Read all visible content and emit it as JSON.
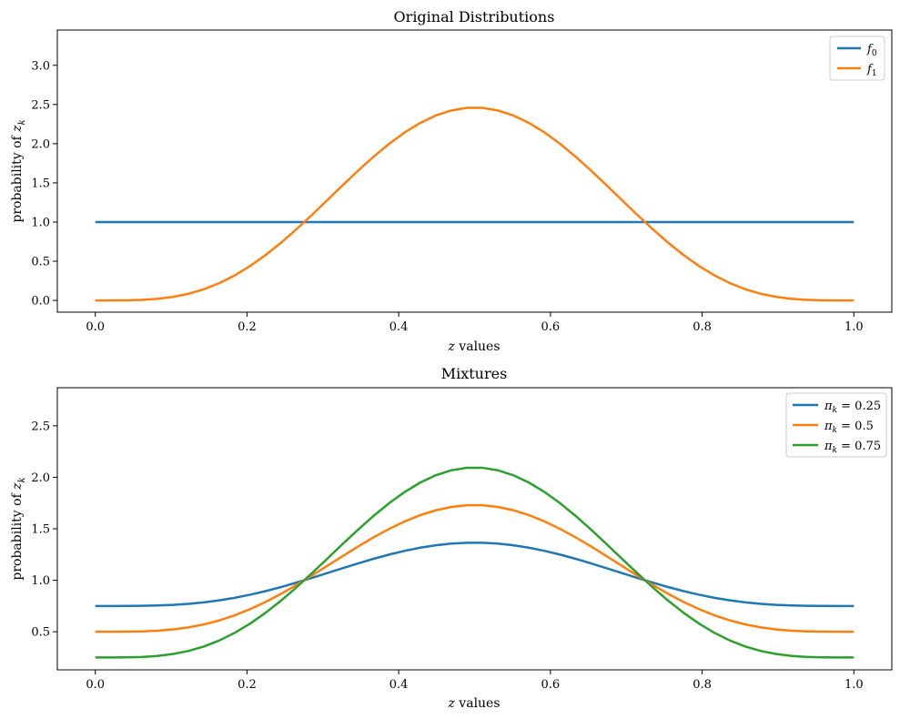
{
  "chart_data": [
    {
      "type": "line",
      "title": "Original Distributions",
      "xlabel": "z values",
      "ylabel": "probability of z_k",
      "xlim": [
        -0.05,
        1.05
      ],
      "ylim": [
        -0.15,
        3.45
      ],
      "xticks": [
        0.0,
        0.2,
        0.4,
        0.6,
        0.8,
        1.0
      ],
      "xtick_labels": [
        "0.0",
        "0.2",
        "0.4",
        "0.6",
        "0.8",
        "1.0"
      ],
      "yticks": [
        0.0,
        0.5,
        1.0,
        1.5,
        2.0,
        2.5,
        3.0
      ],
      "ytick_labels": [
        "0.0",
        "0.5",
        "1.0",
        "1.5",
        "2.0",
        "2.5",
        "3.0"
      ],
      "grid": false,
      "legend_position": "top-right",
      "series": [
        {
          "name": "f0",
          "label_main": "f",
          "label_sub": "0",
          "color": "#1f77b4",
          "kind": "flat",
          "value": 1.0
        },
        {
          "name": "f1",
          "label_main": "f",
          "label_sub": "1",
          "color": "#ff7f0e",
          "kind": "beta",
          "a": 5,
          "b": 5,
          "scale": 1.0,
          "offset": 0.0
        }
      ]
    },
    {
      "type": "line",
      "title": "Mixtures",
      "xlabel": "z values",
      "ylabel": "probability of z_k",
      "xlim": [
        -0.05,
        1.05
      ],
      "ylim": [
        0.13,
        2.87
      ],
      "xticks": [
        0.0,
        0.2,
        0.4,
        0.6,
        0.8,
        1.0
      ],
      "xtick_labels": [
        "0.0",
        "0.2",
        "0.4",
        "0.6",
        "0.8",
        "1.0"
      ],
      "yticks": [
        0.5,
        1.0,
        1.5,
        2.0,
        2.5
      ],
      "ytick_labels": [
        "0.5",
        "1.0",
        "1.5",
        "2.0",
        "2.5"
      ],
      "grid": false,
      "legend_position": "top-right",
      "series": [
        {
          "name": "pi_k = 0.25",
          "label_main": "π",
          "label_sub": "k",
          "label_rest": " = 0.25",
          "color": "#1f77b4",
          "kind": "mix",
          "pi": 0.25
        },
        {
          "name": "pi_k = 0.5",
          "label_main": "π",
          "label_sub": "k",
          "label_rest": " = 0.5",
          "color": "#ff7f0e",
          "kind": "mix",
          "pi": 0.5
        },
        {
          "name": "pi_k = 0.75",
          "label_main": "π",
          "label_sub": "k",
          "label_rest": " = 0.75",
          "color": "#2ca02c",
          "kind": "mix",
          "pi": 0.75
        }
      ]
    }
  ],
  "sampling": {
    "n_points": 50,
    "x_start": 0.0,
    "x_end": 1.0
  }
}
